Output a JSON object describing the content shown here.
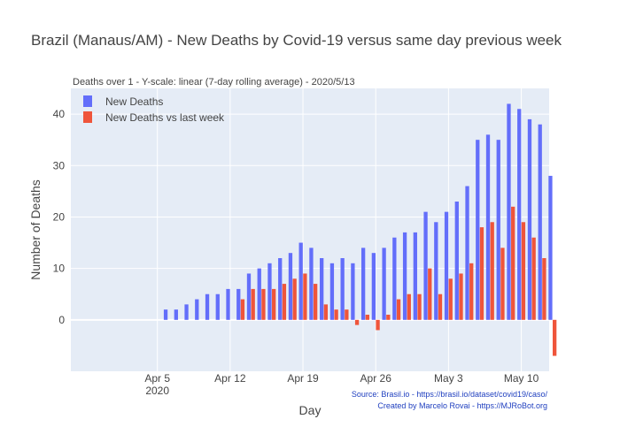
{
  "chart_data": {
    "type": "bar",
    "title": "Brazil (Manaus/AM) - New Deaths by Covid-19 versus same day previous week",
    "subtitle": "Deaths over 1 - Y-scale: linear (7-day rolling average) - 2020/5/13",
    "xlabel": "Day",
    "ylabel": "Number of Deaths",
    "start_date": "2020-03-29",
    "x_ticks": [
      {
        "label": "Apr 5",
        "sublabel": "2020",
        "day_index": 7
      },
      {
        "label": "Apr 12",
        "sublabel": "",
        "day_index": 14
      },
      {
        "label": "Apr 19",
        "sublabel": "",
        "day_index": 21
      },
      {
        "label": "Apr 26",
        "sublabel": "",
        "day_index": 28
      },
      {
        "label": "May 3",
        "sublabel": "",
        "day_index": 35
      },
      {
        "label": "May 10",
        "sublabel": "",
        "day_index": 42
      }
    ],
    "ylim": [
      -10,
      45
    ],
    "y_ticks": [
      0,
      10,
      20,
      30,
      40
    ],
    "grid": true,
    "legend_position": "top-left",
    "series": [
      {
        "name": "New Deaths",
        "color": "#636efa",
        "values": [
          0,
          0,
          0,
          0,
          0,
          0,
          0,
          0,
          2,
          2,
          3,
          4,
          5,
          5,
          6,
          6,
          9,
          10,
          11,
          12,
          13,
          15,
          14,
          12,
          11,
          12,
          11,
          14,
          13,
          14,
          16,
          17,
          17,
          21,
          19,
          21,
          23,
          26,
          35,
          36,
          35,
          42,
          41,
          39,
          38,
          28
        ]
      },
      {
        "name": "New Deaths vs last week",
        "color": "#ef553b",
        "values": [
          0,
          0,
          0,
          0,
          0,
          0,
          0,
          0,
          0,
          0,
          0,
          0,
          0,
          0,
          0,
          4,
          6,
          6,
          6,
          7,
          8,
          9,
          7,
          3,
          2,
          2,
          -1,
          1,
          -2,
          1,
          4,
          5,
          5,
          10,
          5,
          8,
          9,
          11,
          18,
          19,
          14,
          22,
          19,
          16,
          12,
          -7
        ]
      }
    ],
    "annotations": [
      "Source: Brasil.io - https://brasil.io/dataset/covid19/caso/",
      "Created by Marcelo Rovai - https://MJRoBot.org"
    ]
  }
}
